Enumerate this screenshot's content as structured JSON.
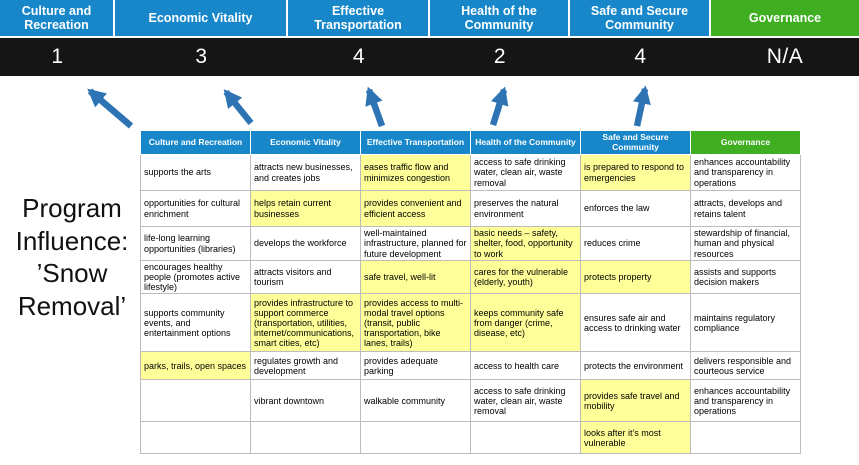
{
  "title": {
    "lines": [
      "Program",
      "Influence:",
      "’Snow",
      "Removal’"
    ]
  },
  "categories": [
    {
      "label": "Culture and Recreation",
      "score": "1",
      "type": "blue"
    },
    {
      "label": "Economic Vitality",
      "score": "3",
      "type": "blue"
    },
    {
      "label": "Effective Transportation",
      "score": "4",
      "type": "blue"
    },
    {
      "label": "Health of the Community",
      "score": "2",
      "type": "blue"
    },
    {
      "label": "Safe and Secure Community",
      "score": "4",
      "type": "blue"
    },
    {
      "label": "Governance",
      "score": "N/A",
      "type": "green"
    }
  ],
  "matrix": {
    "headers": [
      "Culture and Recreation",
      "Economic Vitality",
      "Effective Transportation",
      "Health of the Community",
      "Safe and Secure Community",
      "Governance"
    ],
    "rows": [
      [
        {
          "text": "supports the arts",
          "highlight": false
        },
        {
          "text": "attracts new businesses, and creates jobs",
          "highlight": false
        },
        {
          "text": "eases traffic flow and minimizes congestion",
          "highlight": true
        },
        {
          "text": "access to safe drinking water, clean air, waste removal",
          "highlight": false
        },
        {
          "text": "is prepared to respond to emergencies",
          "highlight": true
        },
        {
          "text": "enhances accountability and transparency in operations",
          "highlight": false
        }
      ],
      [
        {
          "text": "opportunities for cultural enrichment",
          "highlight": false
        },
        {
          "text": "helps retain current businesses",
          "highlight": true
        },
        {
          "text": "provides convenient and efficient access",
          "highlight": true
        },
        {
          "text": "preserves the natural environment",
          "highlight": false
        },
        {
          "text": "enforces the law",
          "highlight": false
        },
        {
          "text": "attracts, develops and retains talent",
          "highlight": false
        }
      ],
      [
        {
          "text": "life-long learning opportunities (libraries)",
          "highlight": false
        },
        {
          "text": "develops the workforce",
          "highlight": false
        },
        {
          "text": "well-maintained infrastructure, planned for future development",
          "highlight": false
        },
        {
          "text": "basic needs – safety, shelter, food, opportunity to work",
          "highlight": true
        },
        {
          "text": "reduces crime",
          "highlight": false
        },
        {
          "text": "stewardship of financial, human and physical resources",
          "highlight": false
        }
      ],
      [
        {
          "text": "encourages healthy people (promotes active lifestyle)",
          "highlight": false
        },
        {
          "text": "attracts visitors and tourism",
          "highlight": false
        },
        {
          "text": "safe travel, well-lit",
          "highlight": true
        },
        {
          "text": "cares for the vulnerable (elderly, youth)",
          "highlight": true
        },
        {
          "text": "protects property",
          "highlight": true
        },
        {
          "text": "assists and supports decision makers",
          "highlight": false
        }
      ],
      [
        {
          "text": "supports community events, and entertainment options",
          "highlight": false
        },
        {
          "text": "provides infrastructure to support commerce (transportation, utilities, internet/communications, smart cities, etc)",
          "highlight": true
        },
        {
          "text": "provides access to multi-modal travel options (transit, public transportation, bike lanes, trails)",
          "highlight": true
        },
        {
          "text": "keeps community safe from danger (crime, disease, etc)",
          "highlight": true
        },
        {
          "text": "ensures safe air and access to drinking water",
          "highlight": false
        },
        {
          "text": "maintains regulatory compliance",
          "highlight": false
        }
      ],
      [
        {
          "text": "parks, trails, open spaces",
          "highlight": true
        },
        {
          "text": "regulates growth and development",
          "highlight": false
        },
        {
          "text": "provides adequate parking",
          "highlight": false
        },
        {
          "text": "access to health care",
          "highlight": false
        },
        {
          "text": "protects the environment",
          "highlight": false
        },
        {
          "text": "delivers responsible and courteous service",
          "highlight": false
        }
      ],
      [
        {
          "text": "",
          "highlight": false
        },
        {
          "text": "vibrant downtown",
          "highlight": false
        },
        {
          "text": "walkable community",
          "highlight": false
        },
        {
          "text": "access to safe drinking water, clean air, waste removal",
          "highlight": false
        },
        {
          "text": "provides safe travel and mobility",
          "highlight": true
        },
        {
          "text": "enhances accountability and transparency in operations",
          "highlight": false
        }
      ],
      [
        {
          "text": "",
          "highlight": false
        },
        {
          "text": "",
          "highlight": false
        },
        {
          "text": "",
          "highlight": false
        },
        {
          "text": "",
          "highlight": false
        },
        {
          "text": "looks after it's most vulnerable",
          "highlight": true
        },
        {
          "text": "",
          "highlight": false
        }
      ]
    ]
  },
  "colors": {
    "blue": "#1787c9",
    "green": "#3fae21",
    "dark": "#151515",
    "yellow": "#ffff99",
    "arrow": "#2e74b5"
  }
}
